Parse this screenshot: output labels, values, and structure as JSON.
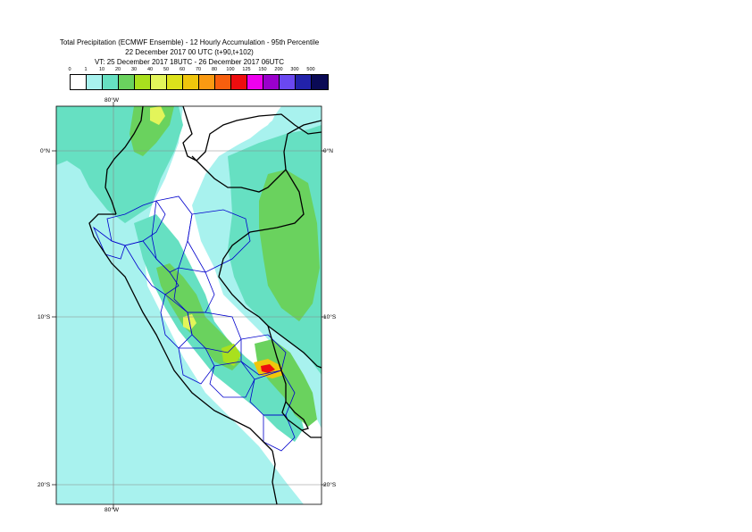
{
  "header": {
    "title_line1": "Total Precipitation (ECMWF Ensemble) - 12 Hourly Accumulation - 95th Percentile",
    "title_line2": "22 December 2017 00 UTC (t+90,t+102)",
    "title_line3": "VT: 25 December 2017 18UTC - 26 December 2017 06UTC"
  },
  "legend": {
    "labels": [
      "0",
      "1",
      "10",
      "20",
      "30",
      "40",
      "50",
      "60",
      "70",
      "80",
      "100",
      "125",
      "150",
      "200",
      "300",
      "500"
    ],
    "colors": [
      "#ffffff",
      "#a8f2ee",
      "#66e0c2",
      "#6ad25e",
      "#a9e01e",
      "#e3f55a",
      "#dde21b",
      "#f0c60c",
      "#fa9a12",
      "#f75f0e",
      "#ee0d0f",
      "#ee00ee",
      "#9a00cc",
      "#6a48f0",
      "#2222aa",
      "#0a0a55"
    ]
  },
  "map": {
    "lon_labels": {
      "top": "80°W",
      "bottom": "80°W"
    },
    "lat_labels": {
      "n0_left": "0°N",
      "n0_right": "0°N",
      "s10_left": "10°S",
      "s10_right": "10°S",
      "s20_left": "20°S",
      "s20_right": "20°S"
    },
    "colors": {
      "ocean_ne": "#ffffff",
      "light_precip": "#a8f2ee",
      "moderate_precip": "#66e0c2",
      "heavy_precip": "#6ad25e",
      "very_heavy": "#a9e01e",
      "yellow": "#e3f55a",
      "orange": "#f0c60c",
      "red": "#ee0d0f",
      "magenta": "#ee00ee",
      "country_border": "#000000",
      "region_border": "#0000cc",
      "grid": "#888888"
    }
  }
}
